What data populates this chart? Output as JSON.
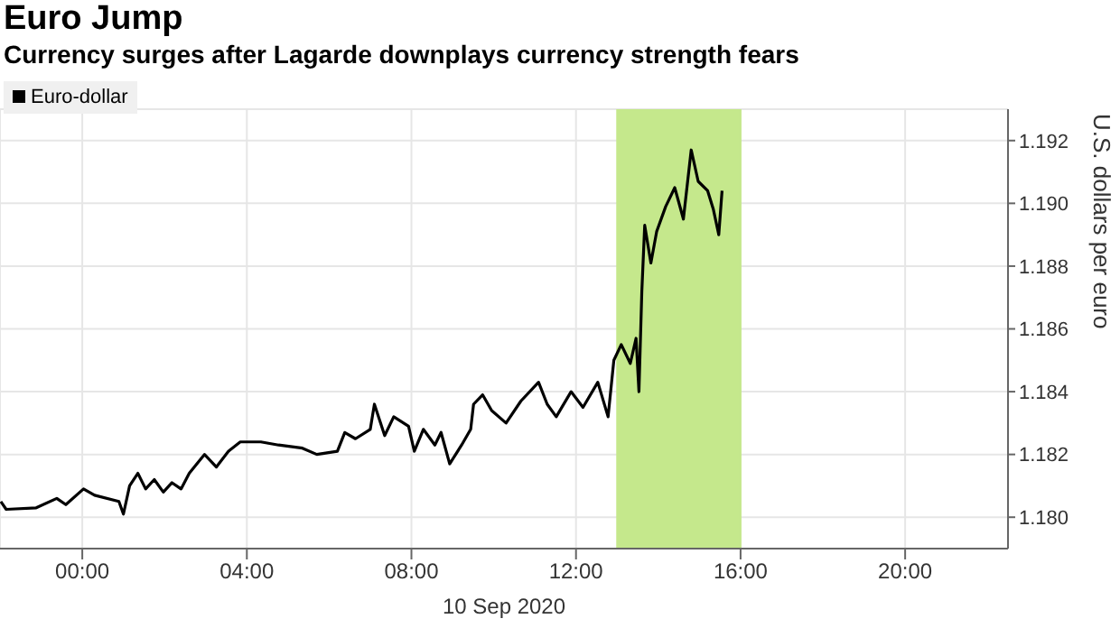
{
  "chart_data": {
    "type": "line",
    "title": "Euro Jump",
    "subtitle": "Currency surges after Lagarde downplays currency strength fears",
    "xlabel": "10 Sep 2020",
    "ylabel": "U.S. dollars per euro",
    "x": [
      -1.98,
      -1.85,
      -1.12,
      -0.62,
      -0.4,
      0.03,
      0.3,
      0.89,
      1.0,
      1.15,
      1.35,
      1.54,
      1.75,
      1.97,
      2.18,
      2.4,
      2.6,
      2.97,
      3.26,
      3.55,
      3.84,
      4.34,
      4.77,
      5.35,
      5.7,
      6.2,
      6.38,
      6.64,
      7.0,
      7.1,
      7.35,
      7.57,
      7.93,
      8.07,
      8.29,
      8.57,
      8.72,
      8.93,
      9.22,
      9.44,
      9.51,
      9.73,
      9.95,
      10.3,
      10.66,
      11.09,
      11.3,
      11.52,
      11.88,
      12.17,
      12.53,
      12.78,
      12.92,
      13.1,
      13.32,
      13.46,
      13.53,
      13.6,
      13.67,
      13.82,
      13.96,
      14.18,
      14.4,
      14.61,
      14.8,
      14.97,
      15.2,
      15.34,
      15.47,
      15.55
    ],
    "series": [
      {
        "name": "Euro-dollar",
        "color": "#000000",
        "values": [
          1.1805,
          1.18025,
          1.1803,
          1.1806,
          1.1804,
          1.1809,
          1.1807,
          1.1805,
          1.1801,
          1.181,
          1.1814,
          1.1809,
          1.1812,
          1.1808,
          1.1811,
          1.1809,
          1.1814,
          1.182,
          1.1816,
          1.1821,
          1.1824,
          1.1824,
          1.1823,
          1.1822,
          1.182,
          1.1821,
          1.1827,
          1.1825,
          1.1828,
          1.1836,
          1.1826,
          1.1832,
          1.1829,
          1.1821,
          1.1828,
          1.1823,
          1.1827,
          1.1817,
          1.1823,
          1.1828,
          1.1836,
          1.1839,
          1.1834,
          1.183,
          1.1837,
          1.1843,
          1.1836,
          1.1832,
          1.184,
          1.1835,
          1.1843,
          1.1832,
          1.185,
          1.1855,
          1.1849,
          1.1857,
          1.184,
          1.1872,
          1.1893,
          1.1881,
          1.1891,
          1.1899,
          1.1905,
          1.1895,
          1.1917,
          1.1907,
          1.1904,
          1.1898,
          1.189,
          1.1904
        ]
      }
    ],
    "xlim": [
      -2,
      22.5
    ],
    "xticks": [
      {
        "value": 0,
        "label": "00:00"
      },
      {
        "value": 4,
        "label": "04:00"
      },
      {
        "value": 8,
        "label": "08:00"
      },
      {
        "value": 12,
        "label": "12:00"
      },
      {
        "value": 16,
        "label": "16:00"
      },
      {
        "value": 20,
        "label": "20:00"
      }
    ],
    "ylim": [
      1.179,
      1.193
    ],
    "yticks": [
      {
        "value": 1.18,
        "label": "1.180"
      },
      {
        "value": 1.182,
        "label": "1.182"
      },
      {
        "value": 1.184,
        "label": "1.184"
      },
      {
        "value": 1.186,
        "label": "1.186"
      },
      {
        "value": 1.188,
        "label": "1.188"
      },
      {
        "value": 1.19,
        "label": "1.190"
      },
      {
        "value": 1.192,
        "label": "1.192"
      }
    ],
    "bands": [
      {
        "axis": "x",
        "from": 13,
        "to": 16,
        "color": "#c5e88c"
      }
    ],
    "grid": true,
    "legend": "top left"
  }
}
